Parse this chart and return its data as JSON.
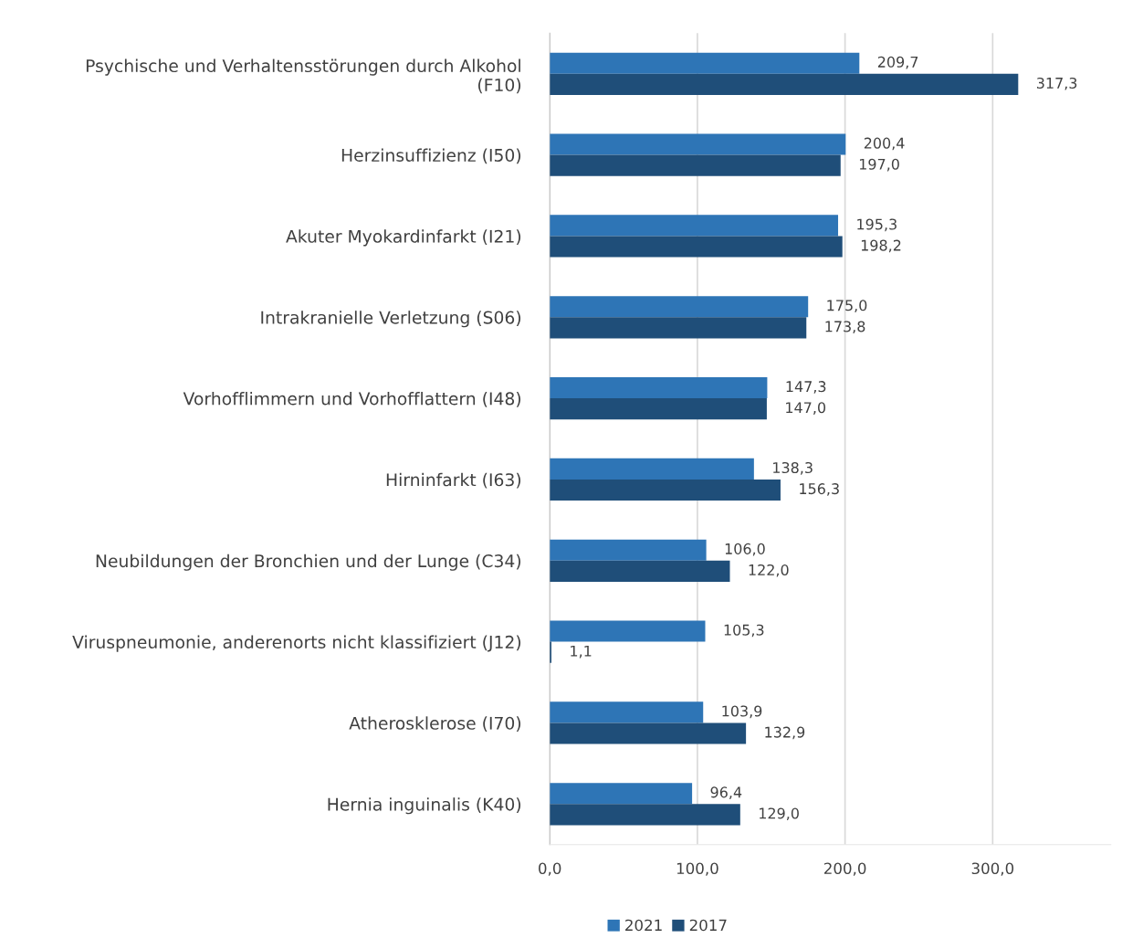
{
  "chart_data": {
    "type": "bar",
    "orientation": "horizontal",
    "categories": [
      "Psychische und Verhaltensstörungen durch Alkohol\n(F10)",
      "Herzinsuffizienz (I50)",
      "Akuter Myokardinfarkt (I21)",
      "Intrakranielle Verletzung (S06)",
      "Vorhofflimmern und Vorhofflattern (I48)",
      "Hirninfarkt (I63)",
      "Neubildungen der Bronchien und der Lunge (C34)",
      "Viruspneumonie, anderenorts nicht klassifiziert (J12)",
      "Atherosklerose (I70)",
      "Hernia inguinalis (K40)"
    ],
    "series": [
      {
        "name": "2021",
        "color": "#2e75b6",
        "values": [
          209.7,
          200.4,
          195.3,
          175.0,
          147.3,
          138.3,
          106.0,
          105.3,
          103.9,
          96.4
        ],
        "value_labels": [
          "209,7",
          "200,4",
          "195,3",
          "175,0",
          "147,3",
          "138,3",
          "106,0",
          "105,3",
          "103,9",
          "96,4"
        ]
      },
      {
        "name": "2017",
        "color": "#1f4e79",
        "values": [
          317.3,
          197.0,
          198.2,
          173.8,
          147.0,
          156.3,
          122.0,
          1.1,
          132.9,
          129.0
        ],
        "value_labels": [
          "317,3",
          "197,0",
          "198,2",
          "173,8",
          "147,0",
          "156,3",
          "122,0",
          "1,1",
          "132,9",
          "129,0"
        ]
      }
    ],
    "xlim": [
      0,
      380
    ],
    "xticks": [
      {
        "value": 0,
        "label": "0,0"
      },
      {
        "value": 100,
        "label": "100,0"
      },
      {
        "value": 200,
        "label": "200,0"
      },
      {
        "value": 300,
        "label": "300,0"
      }
    ],
    "grid": "x",
    "legend": "bottom"
  }
}
